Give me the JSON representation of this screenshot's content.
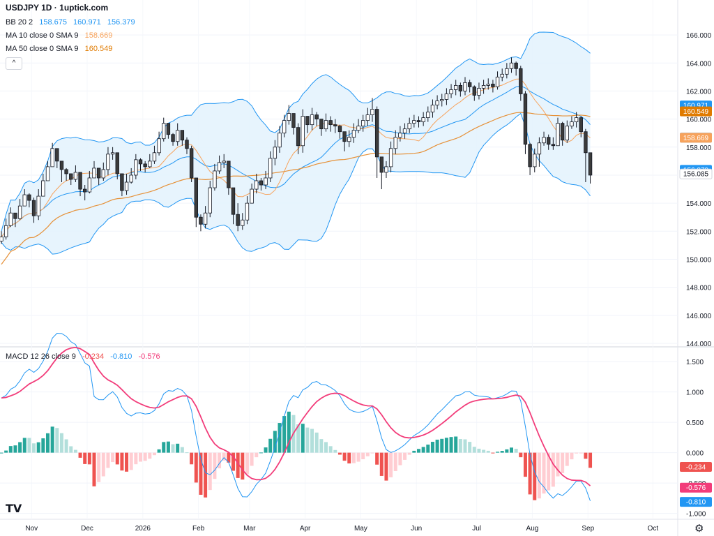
{
  "header": {
    "title": "USDJPY 1D · 1uptick.com",
    "bb_label": "BB 20 2",
    "bb_values": [
      "158.675",
      "160.971",
      "156.379"
    ],
    "ma10_label": "MA 10 close 0 SMA 9",
    "ma10_value": "158.669",
    "ma50_label": "MA 50 close 0 SMA 9",
    "ma50_value": "160.549",
    "macd_label": "MACD 12 26 close 9",
    "macd_values": [
      "-0.234",
      "-0.810",
      "-0.576"
    ],
    "collapse_glyph": "^"
  },
  "colors": {
    "bb_band": "#2196f3",
    "bb_fill": "#e3f2fd",
    "ma10": "#f7a35c",
    "ma50": "#e69138",
    "bull": "#ffffff",
    "bear": "#3b3b3b",
    "macd": "#2196f3",
    "signal": "#f23c7a",
    "hist_pos_strong": "#26a69a",
    "hist_pos_weak": "#b2dfdb",
    "hist_neg_strong": "#ef5350",
    "hist_neg_weak": "#ffcdd2"
  },
  "chart_data": [
    {
      "type": "candlestick",
      "title": "USDJPY 1D",
      "x_labels": [
        "Nov",
        "Dec",
        "2026",
        "Feb",
        "Mar",
        "Apr",
        "May",
        "Jun",
        "Jul",
        "Aug",
        "Sep",
        "Oct"
      ],
      "y_ticks": [
        "166.000",
        "164.000",
        "162.000",
        "160.000",
        "158.000",
        "156.000",
        "154.000",
        "152.000",
        "150.000",
        "148.000",
        "146.000",
        "144.000"
      ],
      "ylim": [
        144,
        167
      ],
      "price_badges": [
        {
          "label": "160.971",
          "value": 160.971,
          "color": "#2196f3"
        },
        {
          "label": "160.549",
          "value": 160.549,
          "color": "#e07b00"
        },
        {
          "label": "158.675",
          "value": 158.675,
          "color": "#2196f3"
        },
        {
          "label": "158.669",
          "value": 158.669,
          "color": "#f7a35c"
        },
        {
          "label": "156.379",
          "value": 156.379,
          "color": "#2196f3"
        },
        {
          "label": "156.085",
          "value": 156.085,
          "color": "#ffffff"
        }
      ],
      "close": [
        151.6,
        152.4,
        153.3,
        152.9,
        153.8,
        154.6,
        154.2,
        153.1,
        154.5,
        155.6,
        156.6,
        157.9,
        157.0,
        156.4,
        156.1,
        155.7,
        156.2,
        155.0,
        154.8,
        155.8,
        156.5,
        155.8,
        156.4,
        157.5,
        157.6,
        156.1,
        154.9,
        155.5,
        156.0,
        157.1,
        156.8,
        156.6,
        157.0,
        157.6,
        158.6,
        159.7,
        158.9,
        158.4,
        159.2,
        158.5,
        157.9,
        155.8,
        153.0,
        152.5,
        153.3,
        155.1,
        156.3,
        156.9,
        157.0,
        155.1,
        153.2,
        152.4,
        152.8,
        154.0,
        155.0,
        155.6,
        155.3,
        155.8,
        157.2,
        158.0,
        159.0,
        159.9,
        160.4,
        159.4,
        158.1,
        160.2,
        159.6,
        160.3,
        160.0,
        159.3,
        159.9,
        159.6,
        159.5,
        159.1,
        158.4,
        158.7,
        159.2,
        159.5,
        159.9,
        160.3,
        160.7,
        157.3,
        156.2,
        156.6,
        157.9,
        158.7,
        159.0,
        159.3,
        159.7,
        159.9,
        159.8,
        160.1,
        160.5,
        161.0,
        161.3,
        161.4,
        161.8,
        162.1,
        162.4,
        162.0,
        162.6,
        162.3,
        161.7,
        162.2,
        162.4,
        162.5,
        162.3,
        163.0,
        163.2,
        163.6,
        164.0,
        163.6,
        161.8,
        158.2,
        156.6,
        157.5,
        158.3,
        158.7,
        158.2,
        158.1,
        159.7,
        158.5,
        159.5,
        159.8,
        160.1,
        159.1,
        157.6,
        156.0
      ],
      "high": [
        152.0,
        152.9,
        153.7,
        153.3,
        154.3,
        155.0,
        154.7,
        154.4,
        155.0,
        156.1,
        157.0,
        158.3,
        157.6,
        156.7,
        156.5,
        156.1,
        156.7,
        155.9,
        155.3,
        156.3,
        157.0,
        156.3,
        156.9,
        158.0,
        158.0,
        157.3,
        156.1,
        156.1,
        156.5,
        157.5,
        157.2,
        157.0,
        157.5,
        158.1,
        159.1,
        160.1,
        159.6,
        159.0,
        159.7,
        159.1,
        158.7,
        158.1,
        154.9,
        153.2,
        153.8,
        155.6,
        156.8,
        157.4,
        157.5,
        156.8,
        155.0,
        154.0,
        153.3,
        154.5,
        155.4,
        156.1,
        155.8,
        156.3,
        157.7,
        158.5,
        159.5,
        160.3,
        161.0,
        160.2,
        159.7,
        160.7,
        160.2,
        160.8,
        160.5,
        160.0,
        160.4,
        160.2,
        160.0,
        159.6,
        159.1,
        159.2,
        159.7,
        160.0,
        160.3,
        160.8,
        161.5,
        160.9,
        157.3,
        157.0,
        158.4,
        159.2,
        159.5,
        159.7,
        160.1,
        160.3,
        160.2,
        160.5,
        160.9,
        161.4,
        161.7,
        161.8,
        162.2,
        162.5,
        162.8,
        162.6,
        163.0,
        162.8,
        162.4,
        162.6,
        162.8,
        162.9,
        162.8,
        163.4,
        163.6,
        164.0,
        164.4,
        164.1,
        163.8,
        162.0,
        158.3,
        157.9,
        158.7,
        159.1,
        158.9,
        158.7,
        160.1,
        159.8,
        159.9,
        160.2,
        160.5,
        160.2,
        159.3,
        157.0
      ],
      "low": [
        151.1,
        151.4,
        152.3,
        152.3,
        152.8,
        153.8,
        153.7,
        152.6,
        152.8,
        154.5,
        155.6,
        156.6,
        156.5,
        155.5,
        155.6,
        155.3,
        155.5,
        154.5,
        154.2,
        154.7,
        155.9,
        155.3,
        155.6,
        156.0,
        157.1,
        155.7,
        154.5,
        154.6,
        155.4,
        155.7,
        156.3,
        156.2,
        156.5,
        156.8,
        157.4,
        158.4,
        158.6,
        158.1,
        158.1,
        158.1,
        157.5,
        155.5,
        152.3,
        152.0,
        152.2,
        153.0,
        154.9,
        156.1,
        156.5,
        154.6,
        152.5,
        152.0,
        152.1,
        152.5,
        154.0,
        154.7,
        154.9,
        155.0,
        155.5,
        156.7,
        157.6,
        158.7,
        159.6,
        158.9,
        157.5,
        157.6,
        159.0,
        159.2,
        159.5,
        158.8,
        159.1,
        159.1,
        159.0,
        158.6,
        157.7,
        158.0,
        158.3,
        159.0,
        159.1,
        159.5,
        159.8,
        155.8,
        155.0,
        155.8,
        156.2,
        157.5,
        158.4,
        158.6,
        159.0,
        159.4,
        159.4,
        159.5,
        159.8,
        160.1,
        160.7,
        160.9,
        161.0,
        161.5,
        161.7,
        161.6,
        161.7,
        161.9,
        161.3,
        161.4,
        161.8,
        162.1,
        161.9,
        162.1,
        162.7,
        162.9,
        163.3,
        163.1,
        161.3,
        157.5,
        156.0,
        156.2,
        156.6,
        158.1,
        157.8,
        157.8,
        158.2,
        158.1,
        158.3,
        159.3,
        159.4,
        158.7,
        155.5,
        155.4
      ]
    },
    {
      "type": "macd",
      "title": "MACD 12 26 close 9",
      "y_ticks": [
        "1.500",
        "1.000",
        "0.500",
        "0.000",
        "-0.500",
        "-1.000"
      ],
      "ylim": [
        -1.05,
        1.65
      ],
      "value_badges": [
        {
          "label": "-0.234",
          "value": -0.234,
          "color": "#ef5350"
        },
        {
          "label": "-0.576",
          "value": -0.576,
          "color": "#f23c7a"
        },
        {
          "label": "-0.810",
          "value": -0.81,
          "color": "#2196f3"
        }
      ]
    }
  ]
}
